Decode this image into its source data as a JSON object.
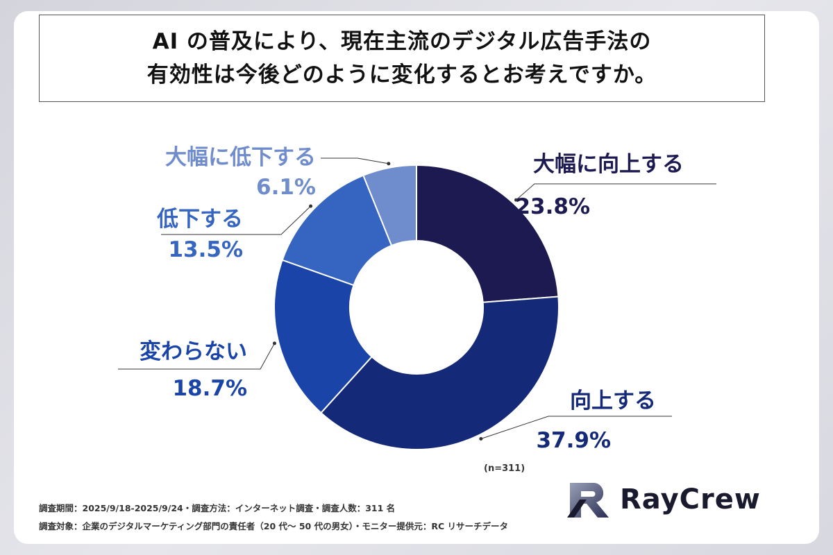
{
  "title": {
    "line1": "AI の普及により、現在主流のデジタル広告手法の",
    "line2": "有効性は今後どのように変化するとお考えですか。"
  },
  "chart_data": {
    "type": "pie",
    "donut": true,
    "title": "AI の普及により、現在主流のデジタル広告手法の有効性は今後どのように変化するとお考えですか。",
    "slices": [
      {
        "label": "大幅に向上する",
        "value": 23.8,
        "value_text": "23.8%",
        "color": "#1c1a50",
        "label_color": "#1c1a50"
      },
      {
        "label": "向上する",
        "value": 37.9,
        "value_text": "37.9%",
        "color": "#142978",
        "label_color": "#142978"
      },
      {
        "label": "変わらない",
        "value": 18.7,
        "value_text": "18.7%",
        "color": "#1a44a8",
        "label_color": "#1a44a8"
      },
      {
        "label": "低下する",
        "value": 13.5,
        "value_text": "13.5%",
        "color": "#3565c0",
        "label_color": "#3565c0"
      },
      {
        "label": "大幅に低下する",
        "value": 6.1,
        "value_text": "6.1%",
        "color": "#6f8ccc",
        "label_color": "#6f8ccc"
      }
    ],
    "sample": "(n=311)"
  },
  "footer": {
    "line1": "調査期間：2025/9/18-2025/9/24・調査方法：インターネット調査・調査人数：311 名",
    "line2": "調査対象：企業のデジタルマーケティング部門の責任者（20 代～ 50 代の男女）・モニター提供元：RC リサーチデータ"
  },
  "logo": {
    "text": "RayCrew",
    "icon": "raycrew-r-logo-icon",
    "color": "#1a1a2e"
  }
}
